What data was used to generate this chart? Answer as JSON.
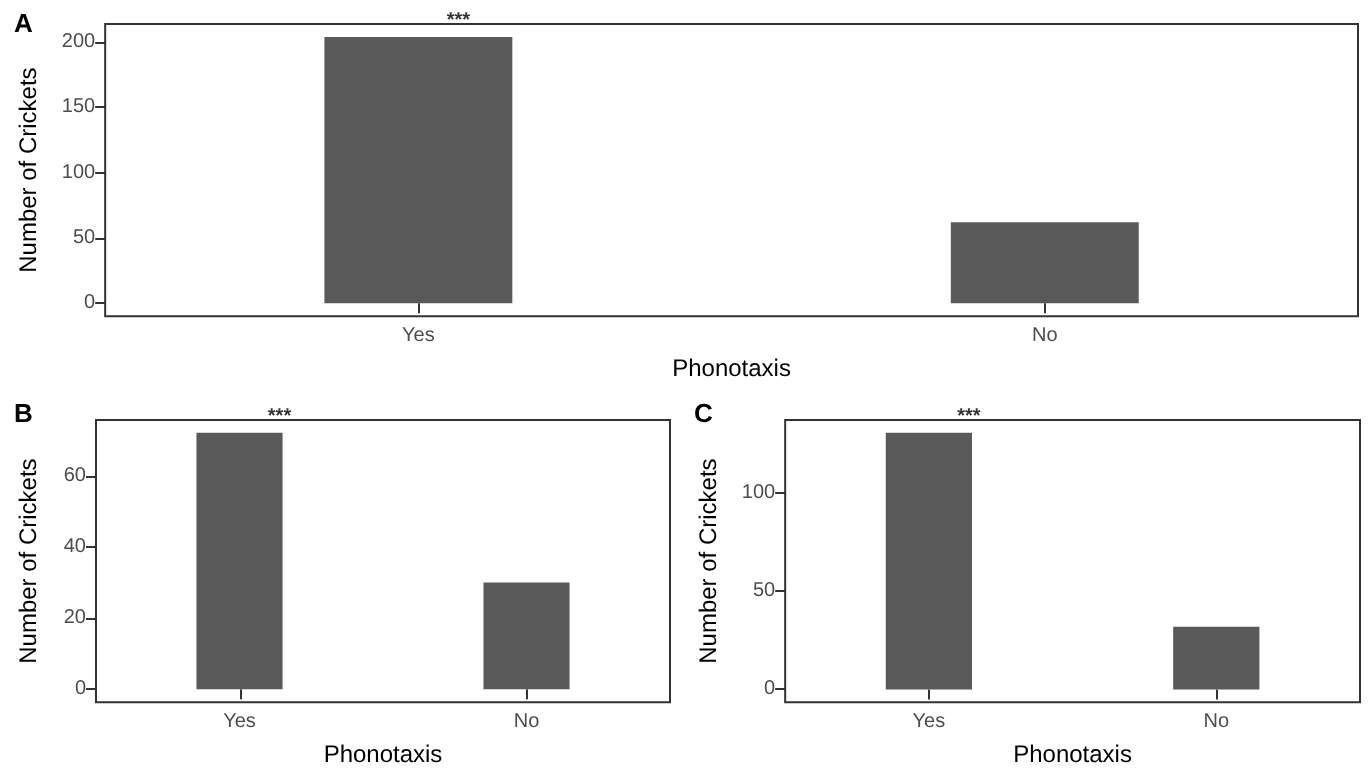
{
  "chart_data": [
    {
      "type": "bar",
      "title": "A",
      "xlabel": "Phonotaxis",
      "ylabel": "Number of Crickets",
      "categories": [
        "Yes",
        "No"
      ],
      "values": [
        204,
        62
      ],
      "color": "#595959",
      "ylim": [
        -10,
        214
      ],
      "yticks": [
        0,
        50,
        100,
        150,
        200
      ],
      "grid": false,
      "annotations": [
        {
          "text": "***",
          "x": "Yes",
          "y": 204
        }
      ]
    },
    {
      "type": "bar",
      "title": "B",
      "xlabel": "Phonotaxis",
      "ylabel": "Number of Crickets",
      "categories": [
        "Yes",
        "No"
      ],
      "values": [
        72,
        30
      ],
      "color": "#595959",
      "ylim": [
        -3.6,
        75.6
      ],
      "yticks": [
        0,
        20,
        40,
        60
      ],
      "grid": false,
      "annotations": [
        {
          "text": "***",
          "x": "Yes",
          "y": 72
        }
      ]
    },
    {
      "type": "bar",
      "title": "C",
      "xlabel": "Phonotaxis",
      "ylabel": "Number of Crickets",
      "categories": [
        "Yes",
        "No"
      ],
      "values": [
        131,
        32
      ],
      "color": "#595959",
      "ylim": [
        -6.5,
        137.5
      ],
      "yticks": [
        0,
        50,
        100
      ],
      "grid": false,
      "annotations": [
        {
          "text": "***",
          "x": "Yes",
          "y": 131
        }
      ]
    }
  ]
}
